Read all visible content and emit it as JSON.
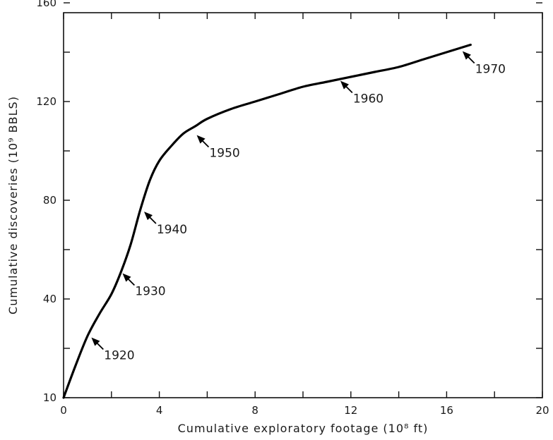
{
  "chart_data": {
    "type": "line",
    "title": "",
    "xlabel": "Cumulative exploratory footage (10⁸ ft)",
    "ylabel": "Cumulative discoveries (10⁹ BBLS)",
    "xlim": [
      0,
      20
    ],
    "ylim": [
      10,
      160
    ],
    "y_scale_note": "axis printed starting at 10, spacing same as 0–40 interval",
    "x_ticks": [
      "0",
      "4",
      "8",
      "12",
      "16",
      "20"
    ],
    "y_ticks": [
      "10",
      "40",
      "80",
      "120",
      "160"
    ],
    "grid": false,
    "series": [
      {
        "x": [
          0,
          0.5,
          1.0,
          1.5,
          2.0,
          2.4,
          2.8,
          3.2,
          3.6,
          4.0,
          4.5,
          5.0,
          5.5,
          6.0,
          7.0,
          8.0,
          9.0,
          10.0,
          11.0,
          12.0,
          13.0,
          14.0,
          15.0,
          16.0,
          17.0
        ],
        "y": [
          0,
          13,
          25,
          34,
          42,
          51,
          62,
          76,
          88,
          96,
          102,
          107,
          110,
          113,
          117,
          120,
          123,
          126,
          128,
          130,
          132,
          134,
          137,
          140,
          143
        ]
      }
    ],
    "annotations": [
      {
        "label": "1920",
        "x": 1.1,
        "y": 25
      },
      {
        "label": "1930",
        "x": 2.4,
        "y": 51
      },
      {
        "label": "1940",
        "x": 3.3,
        "y": 76
      },
      {
        "label": "1950",
        "x": 5.5,
        "y": 107
      },
      {
        "label": "1960",
        "x": 11.5,
        "y": 129
      },
      {
        "label": "1970",
        "x": 16.6,
        "y": 141
      }
    ]
  }
}
